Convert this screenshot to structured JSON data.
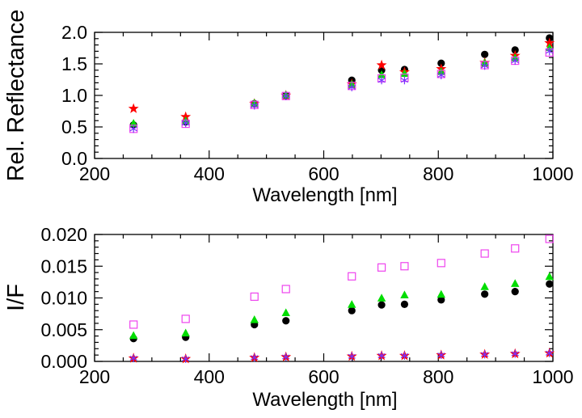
{
  "chart_data": [
    {
      "type": "scatter",
      "title": "",
      "xlabel": "Wavelength [nm]",
      "ylabel": "Rel. Reflectance",
      "xlim": [
        200,
        1000
      ],
      "ylim": [
        0.0,
        2.0
      ],
      "xticks": [
        "200",
        "400",
        "600",
        "800",
        "1000"
      ],
      "yticks": [
        "0.0",
        "0.5",
        "1.0",
        "1.5",
        "2.0"
      ],
      "ytick_values": [
        0.0,
        0.5,
        1.0,
        1.5,
        2.0
      ],
      "x": [
        268,
        359,
        479,
        534,
        649,
        701,
        741,
        805,
        881,
        934,
        994
      ],
      "series": [
        {
          "name": "black circles",
          "marker": "circle",
          "color": "#000000",
          "values": [
            0.53,
            0.58,
            0.87,
            1.0,
            1.24,
            1.4,
            1.41,
            1.51,
            1.65,
            1.72,
            1.91
          ]
        },
        {
          "name": "red stars",
          "marker": "star",
          "color": "#ff0000",
          "values": [
            0.79,
            0.66,
            0.87,
            1.0,
            1.18,
            1.48,
            1.37,
            1.42,
            1.52,
            1.63,
            1.83
          ]
        },
        {
          "name": "green triangles",
          "marker": "triangle",
          "color": "#00dd00",
          "values": [
            0.56,
            0.6,
            0.88,
            1.01,
            1.18,
            1.33,
            1.35,
            1.38,
            1.52,
            1.6,
            1.76
          ]
        },
        {
          "name": "magenta squares",
          "marker": "square",
          "color": "#ee44ee",
          "values": [
            0.47,
            0.55,
            0.85,
            0.99,
            1.15,
            1.27,
            1.28,
            1.34,
            1.48,
            1.55,
            1.68
          ]
        },
        {
          "name": "purple asterisks",
          "marker": "asterisk",
          "color": "#7733ff",
          "values": [
            0.47,
            0.56,
            0.84,
            0.99,
            1.13,
            1.24,
            1.24,
            1.32,
            1.47,
            1.55,
            1.7
          ]
        }
      ]
    },
    {
      "type": "scatter",
      "title": "",
      "xlabel": "Wavelength [nm]",
      "ylabel": "I/F",
      "xlim": [
        200,
        1000
      ],
      "ylim": [
        0.0,
        0.02
      ],
      "xticks": [
        "200",
        "400",
        "600",
        "800",
        "1000"
      ],
      "yticks": [
        "0.000",
        "0.005",
        "0.010",
        "0.015",
        "0.020"
      ],
      "ytick_values": [
        0.0,
        0.005,
        0.01,
        0.015,
        0.02
      ],
      "x": [
        268,
        359,
        479,
        534,
        649,
        701,
        741,
        805,
        881,
        934,
        994
      ],
      "series": [
        {
          "name": "black circles",
          "marker": "circle",
          "color": "#000000",
          "values": [
            0.0036,
            0.0038,
            0.0058,
            0.0064,
            0.008,
            0.0089,
            0.009,
            0.0097,
            0.0106,
            0.011,
            0.0122
          ]
        },
        {
          "name": "green triangles",
          "marker": "triangle",
          "color": "#00dd00",
          "values": [
            0.0041,
            0.0045,
            0.0066,
            0.0077,
            0.009,
            0.01,
            0.0105,
            0.0106,
            0.0118,
            0.0123,
            0.0134
          ]
        },
        {
          "name": "magenta squares",
          "marker": "square",
          "color": "#ee44ee",
          "values": [
            0.0058,
            0.0067,
            0.0102,
            0.0114,
            0.0134,
            0.0148,
            0.015,
            0.0155,
            0.017,
            0.0178,
            0.0193
          ]
        },
        {
          "name": "red stars",
          "marker": "star",
          "color": "#ff0000",
          "values": [
            0.0005,
            0.0004,
            0.0006,
            0.0007,
            0.0008,
            0.0009,
            0.0009,
            0.001,
            0.0011,
            0.0012,
            0.0013
          ]
        },
        {
          "name": "purple asterisks",
          "marker": "asterisk",
          "color": "#7733ff",
          "values": [
            0.0005,
            0.0004,
            0.0006,
            0.0007,
            0.0008,
            0.0009,
            0.0009,
            0.001,
            0.0011,
            0.0012,
            0.0013
          ]
        }
      ]
    }
  ]
}
